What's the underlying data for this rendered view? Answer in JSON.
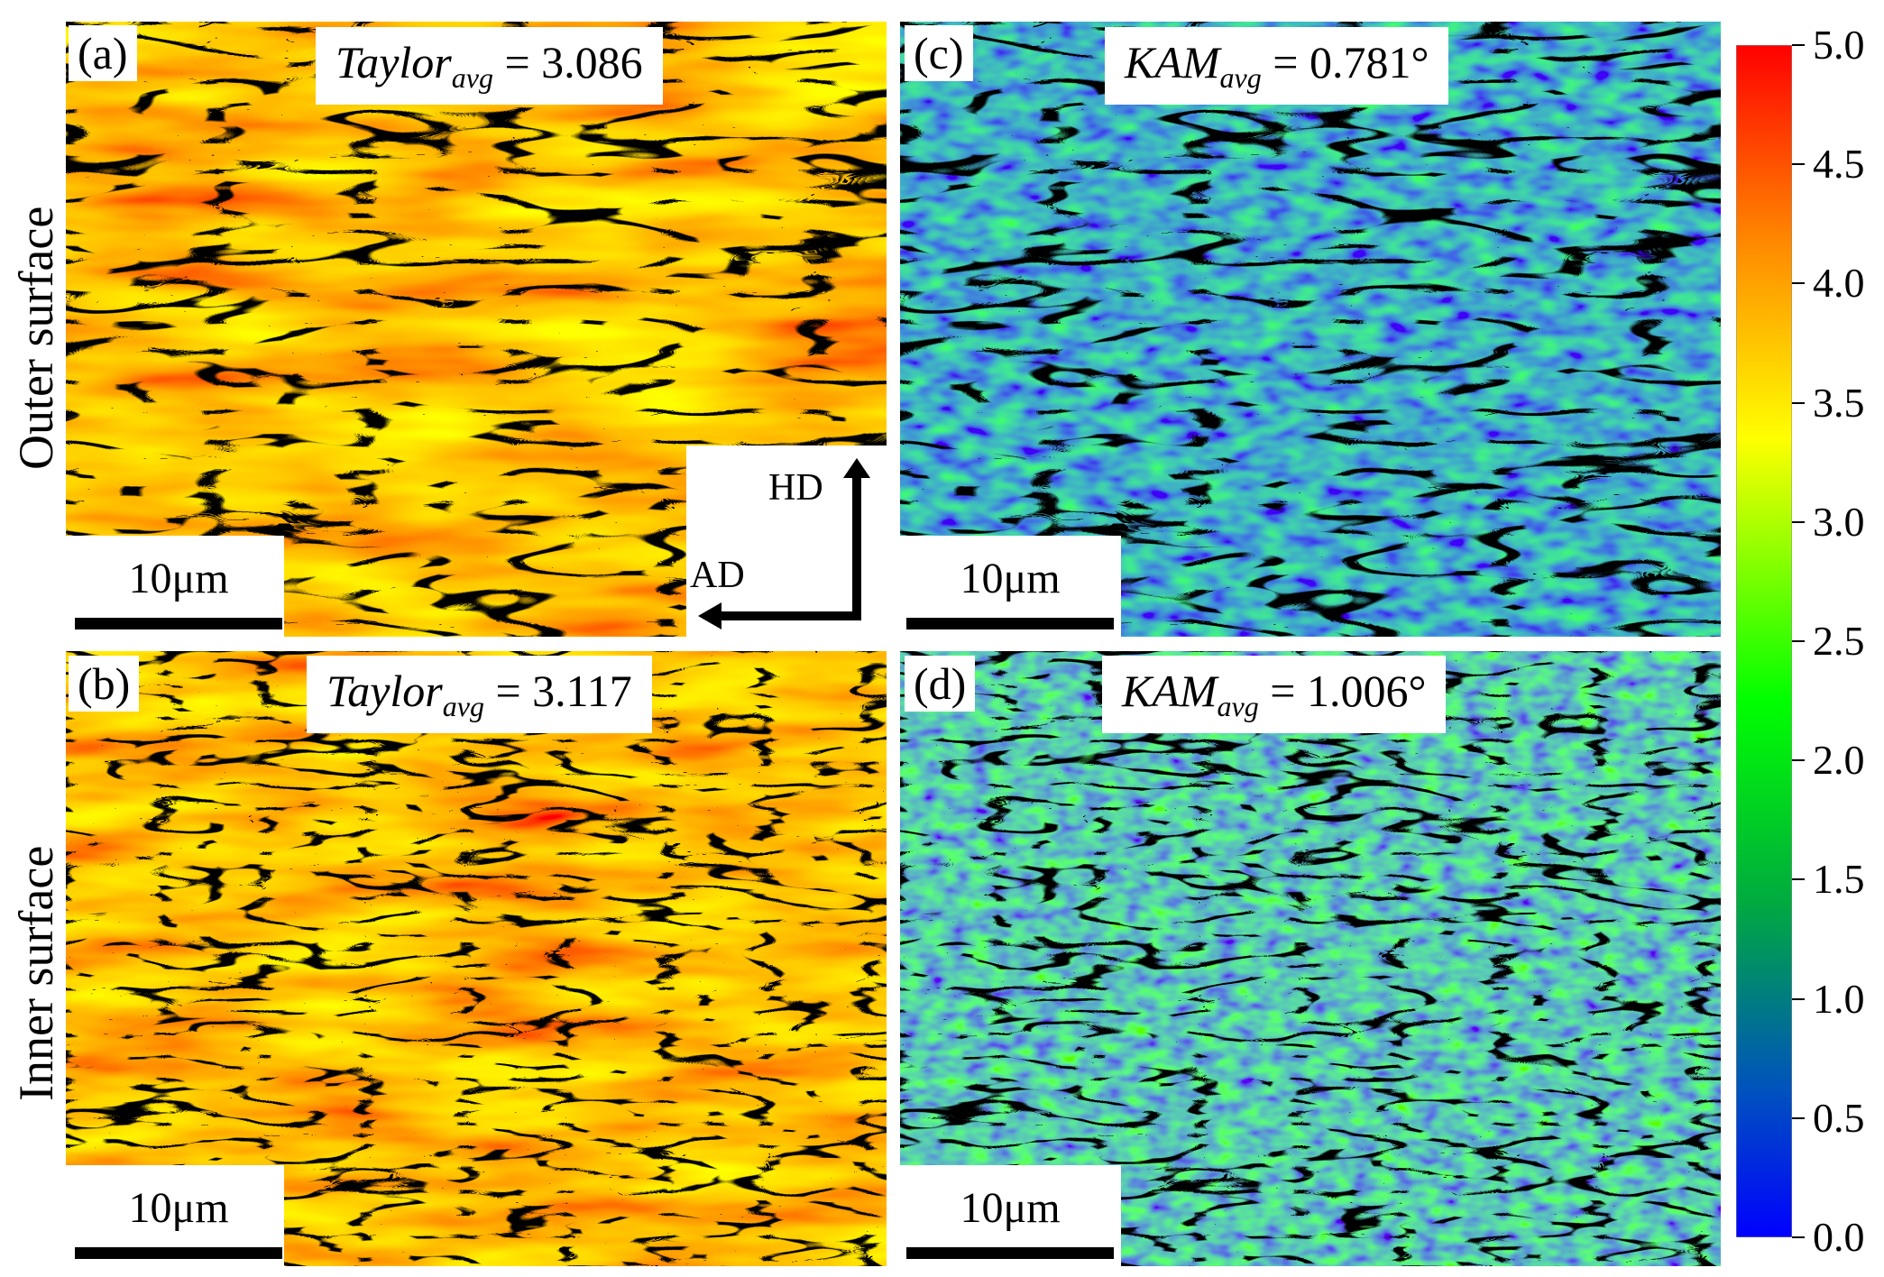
{
  "row_labels": {
    "outer": "Outer surface",
    "inner": "Inner surface"
  },
  "panels": {
    "a": {
      "label": "(a)",
      "symbol": "Taylor",
      "subscript": "avg",
      "value": "= 3.086",
      "scale": "10μm"
    },
    "b": {
      "label": "(b)",
      "symbol": "Taylor",
      "subscript": "avg",
      "value": "= 3.117",
      "scale": "10μm"
    },
    "c": {
      "label": "(c)",
      "symbol": "KAM",
      "subscript": "avg",
      "value": "= 0.781°",
      "scale": "10μm"
    },
    "d": {
      "label": "(d)",
      "symbol": "KAM",
      "subscript": "avg",
      "value": "= 1.006°",
      "scale": "10μm"
    }
  },
  "axes": {
    "hd": "HD",
    "ad": "AD"
  },
  "colorbar": {
    "ticks": [
      "5.0",
      "4.5",
      "4.0",
      "3.5",
      "3.0",
      "2.5",
      "2.0",
      "1.5",
      "1.0",
      "0.5",
      "0.0"
    ],
    "colors": [
      "#ff0000",
      "#ff8c00",
      "#ffff00",
      "#00ff00",
      "#00aa40",
      "#0050c0",
      "#0000ff"
    ]
  }
}
